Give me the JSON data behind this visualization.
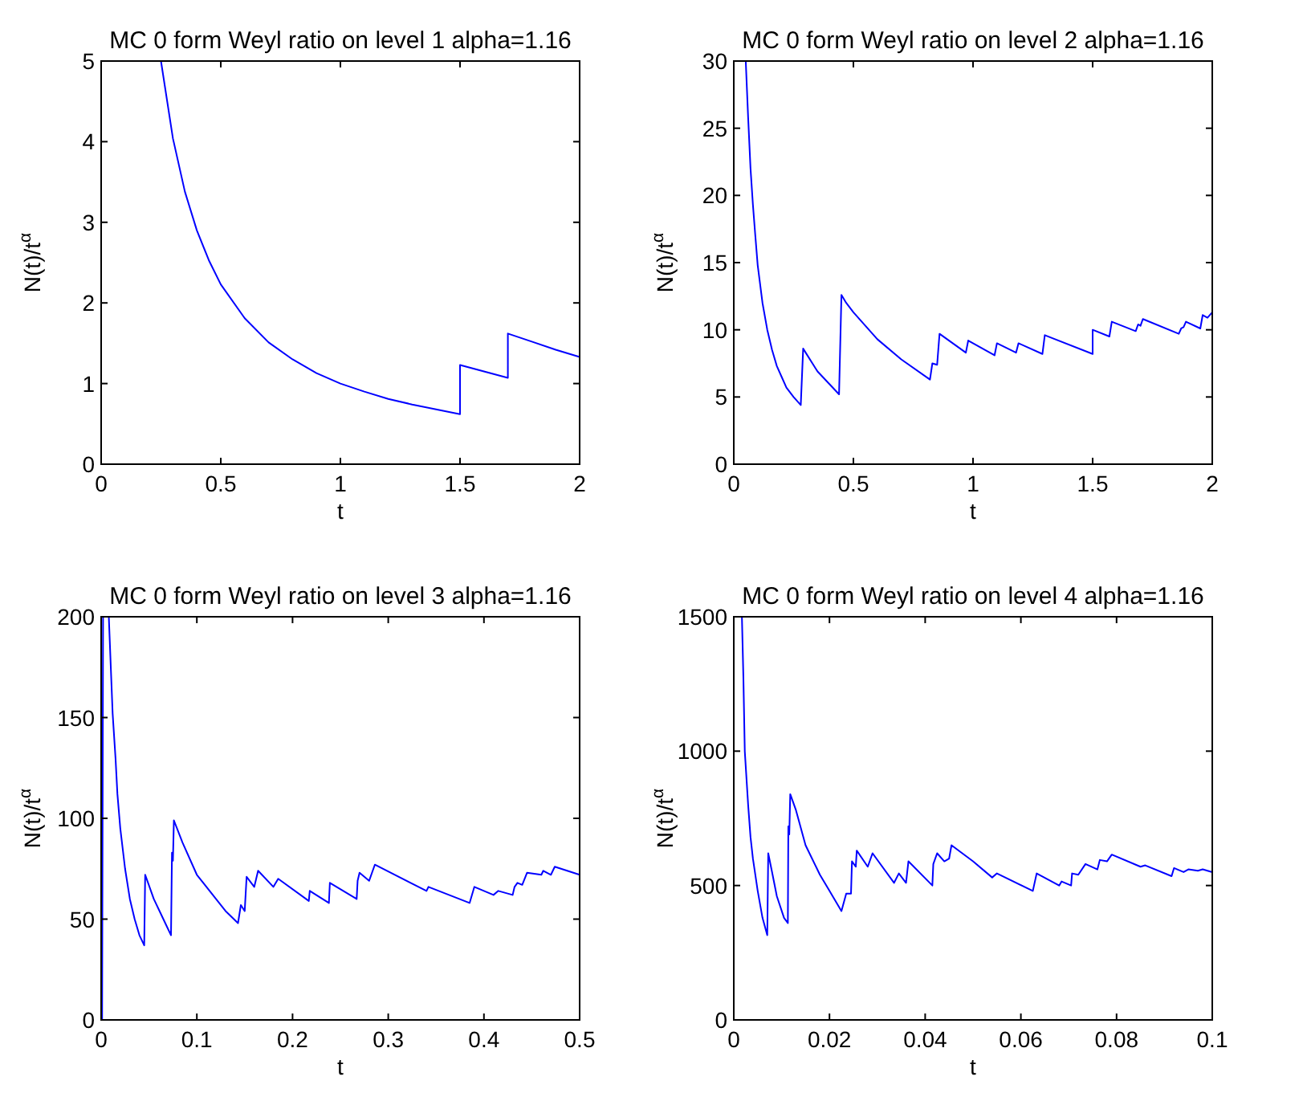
{
  "chart_data": [
    {
      "type": "line",
      "title": "MC 0 form Weyl ratio on level 1 alpha=1.16",
      "xlabel": "t",
      "ylabel": "N(t)/t$^{α}$",
      "xlim": [
        0,
        2
      ],
      "ylim": [
        0,
        5
      ],
      "xticks": [
        0,
        0.5,
        1,
        1.5,
        2
      ],
      "yticks": [
        0,
        1,
        2,
        3,
        4,
        5
      ],
      "grid": false,
      "series": [
        {
          "color": "#0000ff",
          "x": [
            0.25,
            0.3,
            0.35,
            0.4,
            0.45,
            0.5,
            0.6,
            0.7,
            0.8,
            0.9,
            1,
            1.1,
            1.2,
            1.3,
            1.4,
            1.5,
            1.5,
            1.6,
            1.7,
            1.7,
            1.8,
            1.9,
            2
          ],
          "values": [
            5,
            4.04,
            3.38,
            2.9,
            2.53,
            2.23,
            1.81,
            1.51,
            1.3,
            1.13,
            1,
            0.9,
            0.81,
            0.74,
            0.68,
            0.62,
            1.23,
            1.15,
            1.07,
            1.62,
            1.52,
            1.42,
            1.33
          ]
        }
      ]
    },
    {
      "type": "line",
      "title": "MC 0 form Weyl ratio on level 2 alpha=1.16",
      "xlabel": "t",
      "ylabel": "N(t)/t$^{α}$",
      "xlim": [
        0,
        2
      ],
      "ylim": [
        0,
        30
      ],
      "xticks": [
        0,
        0.5,
        1,
        1.5,
        2
      ],
      "yticks": [
        0,
        5,
        10,
        15,
        20,
        25,
        30
      ],
      "grid": false,
      "series": [
        {
          "color": "#0000ff",
          "x": [
            0.05,
            0.06,
            0.07,
            0.08,
            0.09,
            0.1,
            0.12,
            0.14,
            0.16,
            0.18,
            0.2,
            0.22,
            0.25,
            0.28,
            0.29,
            0.35,
            0.44,
            0.45,
            0.47,
            0.5,
            0.6,
            0.7,
            0.82,
            0.83,
            0.85,
            0.86,
            0.97,
            0.98,
            1.09,
            1.1,
            1.18,
            1.19,
            1.29,
            1.3,
            1.5,
            1.5,
            1.57,
            1.58,
            1.68,
            1.69,
            1.7,
            1.71,
            1.86,
            1.87,
            1.88,
            1.89,
            1.95,
            1.96,
            1.98,
            2
          ],
          "values": [
            30,
            25.8,
            22,
            19.3,
            17,
            14.8,
            12,
            10,
            8.5,
            7.3,
            6.5,
            5.7,
            5,
            4.4,
            8.6,
            6.9,
            5.2,
            12.6,
            12,
            11.3,
            9.3,
            7.8,
            6.3,
            7.5,
            7.4,
            9.7,
            8.3,
            9.2,
            8.1,
            9,
            8.3,
            9,
            8.2,
            9.6,
            8.2,
            10,
            9.5,
            10.6,
            9.9,
            10.4,
            10.3,
            10.8,
            9.7,
            10.1,
            10.2,
            10.6,
            10.1,
            11.1,
            10.9,
            11.3
          ]
        }
      ]
    },
    {
      "type": "line",
      "title": "MC 0 form Weyl ratio on level 3 alpha=1.16",
      "xlabel": "t",
      "ylabel": "N(t)/t$^{α}$",
      "xlim": [
        0,
        0.5
      ],
      "ylim": [
        0,
        200
      ],
      "xticks": [
        0,
        0.1,
        0.2,
        0.3,
        0.4,
        0.5
      ],
      "yticks": [
        0,
        50,
        100,
        150,
        200
      ],
      "grid": false,
      "series": [
        {
          "color": "#0000ff",
          "x": [
            0.001,
            0.002,
            0.008,
            0.009,
            0.012,
            0.015,
            0.017,
            0.02,
            0.025,
            0.03,
            0.035,
            0.04,
            0.045,
            0.046,
            0.055,
            0.065,
            0.073,
            0.074,
            0.075,
            0.076,
            0.085,
            0.1,
            0.12,
            0.13,
            0.143,
            0.146,
            0.15,
            0.152,
            0.16,
            0.164,
            0.18,
            0.185,
            0.217,
            0.218,
            0.238,
            0.239,
            0.267,
            0.268,
            0.27,
            0.28,
            0.286,
            0.34,
            0.342,
            0.385,
            0.39,
            0.41,
            0.415,
            0.43,
            0.432,
            0.435,
            0.44,
            0.445,
            0.46,
            0.462,
            0.47,
            0.474,
            0.5
          ],
          "values": [
            0,
            200,
            200,
            188,
            152,
            130,
            112,
            95,
            75,
            60,
            50,
            42,
            37,
            72,
            60,
            50,
            42,
            83,
            79,
            99,
            88,
            72,
            60,
            54,
            48,
            57,
            54,
            71,
            66,
            74,
            66,
            70,
            59,
            64,
            58,
            68,
            60,
            69,
            73,
            69,
            77,
            64,
            66,
            58,
            66,
            62,
            64,
            62,
            66,
            68,
            67,
            73,
            72,
            74,
            72,
            76,
            72
          ]
        }
      ]
    },
    {
      "type": "line",
      "title": "MC 0 form Weyl ratio on level 4 alpha=1.16",
      "xlabel": "t",
      "ylabel": "N(t)/t$^{α}$",
      "xlim": [
        0,
        0.1
      ],
      "ylim": [
        0,
        1500
      ],
      "xticks": [
        0,
        0.02,
        0.04,
        0.06,
        0.08,
        0.1
      ],
      "yticks": [
        0,
        500,
        1000,
        1500
      ],
      "grid": false,
      "series": [
        {
          "color": "#0000ff",
          "x": [
            0.0017,
            0.002,
            0.0023,
            0.003,
            0.0035,
            0.004,
            0.005,
            0.006,
            0.007,
            0.0072,
            0.008,
            0.009,
            0.0105,
            0.0113,
            0.0114,
            0.0116,
            0.0118,
            0.013,
            0.015,
            0.018,
            0.02,
            0.0225,
            0.0235,
            0.0245,
            0.0247,
            0.0255,
            0.0257,
            0.028,
            0.029,
            0.0335,
            0.0345,
            0.036,
            0.0365,
            0.0415,
            0.0417,
            0.0425,
            0.044,
            0.045,
            0.0455,
            0.05,
            0.054,
            0.055,
            0.0625,
            0.0633,
            0.068,
            0.0685,
            0.0705,
            0.0707,
            0.072,
            0.0735,
            0.076,
            0.0765,
            0.078,
            0.079,
            0.085,
            0.086,
            0.0915,
            0.092,
            0.094,
            0.095,
            0.097,
            0.098,
            0.1
          ],
          "values": [
            1500,
            1280,
            1000,
            800,
            680,
            600,
            480,
            380,
            315,
            620,
            550,
            460,
            380,
            360,
            720,
            690,
            840,
            780,
            650,
            540,
            480,
            405,
            470,
            470,
            590,
            570,
            630,
            570,
            620,
            510,
            545,
            510,
            590,
            500,
            580,
            620,
            590,
            600,
            650,
            590,
            530,
            545,
            480,
            545,
            500,
            515,
            500,
            545,
            540,
            580,
            560,
            595,
            590,
            615,
            570,
            575,
            535,
            565,
            550,
            560,
            555,
            560,
            550
          ]
        }
      ]
    }
  ]
}
